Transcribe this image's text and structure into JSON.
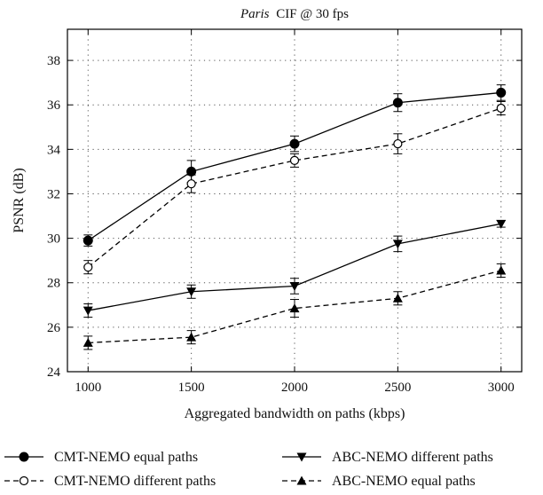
{
  "chart_data": {
    "type": "line",
    "title_italic": "Paris",
    "title_rest": "CIF @ 30 fps",
    "xlabel": "Aggregated bandwidth on paths (kbps)",
    "ylabel": "PSNR (dB)",
    "x": [
      1000,
      1500,
      2000,
      2500,
      3000
    ],
    "xticks": [
      "1000",
      "1500",
      "2000",
      "2500",
      "3000"
    ],
    "yticks": [
      "24",
      "26",
      "28",
      "30",
      "32",
      "34",
      "36",
      "38"
    ],
    "xlim": [
      900,
      3100
    ],
    "ylim": [
      24,
      39.4
    ],
    "grid": true,
    "legend_position": "bottom",
    "series": [
      {
        "name": "CMT-NEMO equal paths",
        "values": [
          29.9,
          33.0,
          34.25,
          36.1,
          36.55
        ],
        "errors": [
          0.25,
          0.5,
          0.35,
          0.4,
          0.35
        ],
        "marker": "filled-circle",
        "line": "solid"
      },
      {
        "name": "CMT-NEMO different paths",
        "values": [
          28.7,
          32.45,
          33.5,
          34.25,
          35.85
        ],
        "errors": [
          0.3,
          0.4,
          0.3,
          0.45,
          0.3
        ],
        "marker": "open-circle",
        "line": "dashed"
      },
      {
        "name": "ABC-NEMO different paths",
        "values": [
          26.75,
          27.6,
          27.85,
          29.75,
          30.65
        ],
        "errors": [
          0.3,
          0.3,
          0.35,
          0.35,
          0.15
        ],
        "marker": "filled-triangle-down",
        "line": "solid"
      },
      {
        "name": "ABC-NEMO equal paths",
        "values": [
          25.3,
          25.55,
          26.85,
          27.3,
          28.55
        ],
        "errors": [
          0.3,
          0.3,
          0.4,
          0.3,
          0.3
        ],
        "marker": "filled-triangle-up",
        "line": "dashed"
      }
    ]
  }
}
